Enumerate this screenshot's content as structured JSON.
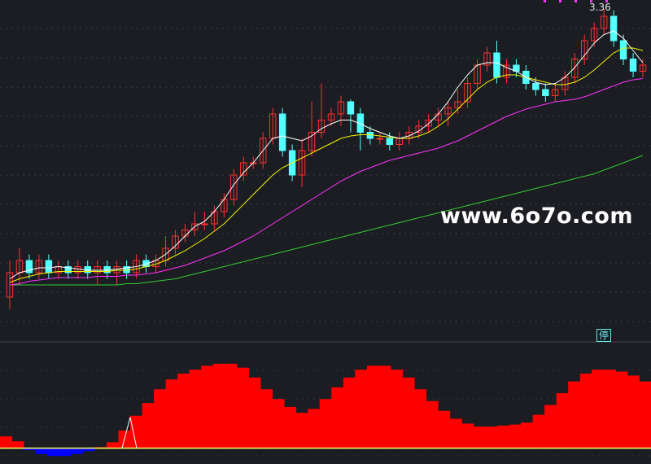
{
  "chart_data": {
    "type": "candlestick",
    "price_panel": {
      "high_annotation": "3.36",
      "candles": [
        [
          1.0,
          1.2,
          1.3,
          0.9
        ],
        [
          1.2,
          1.3,
          1.4,
          1.1
        ],
        [
          1.3,
          1.2,
          1.35,
          1.15
        ],
        [
          1.2,
          1.3,
          1.35,
          1.15
        ],
        [
          1.3,
          1.2,
          1.35,
          1.15
        ],
        [
          1.2,
          1.25,
          1.3,
          1.15
        ],
        [
          1.25,
          1.2,
          1.3,
          1.15
        ],
        [
          1.2,
          1.25,
          1.3,
          1.15
        ],
        [
          1.25,
          1.2,
          1.3,
          1.15
        ],
        [
          1.2,
          1.25,
          1.3,
          1.1
        ],
        [
          1.25,
          1.2,
          1.3,
          1.15
        ],
        [
          1.2,
          1.25,
          1.3,
          1.1
        ],
        [
          1.25,
          1.2,
          1.3,
          1.15
        ],
        [
          1.2,
          1.3,
          1.35,
          1.15
        ],
        [
          1.3,
          1.25,
          1.35,
          1.2
        ],
        [
          1.25,
          1.3,
          1.35,
          1.2
        ],
        [
          1.3,
          1.4,
          1.5,
          1.25
        ],
        [
          1.4,
          1.5,
          1.55,
          1.35
        ],
        [
          1.5,
          1.55,
          1.6,
          1.45
        ],
        [
          1.55,
          1.6,
          1.7,
          1.5
        ],
        [
          1.6,
          1.6,
          1.7,
          1.55
        ],
        [
          1.6,
          1.7,
          1.75,
          1.55
        ],
        [
          1.7,
          1.8,
          1.85,
          1.65
        ],
        [
          1.8,
          2.0,
          2.05,
          1.75
        ],
        [
          2.0,
          2.1,
          2.15,
          1.95
        ],
        [
          2.1,
          2.1,
          2.15,
          2.05
        ],
        [
          2.1,
          2.3,
          2.35,
          2.05
        ],
        [
          2.3,
          2.5,
          2.55,
          2.25
        ],
        [
          2.5,
          2.2,
          2.55,
          2.15
        ],
        [
          2.2,
          2.0,
          2.25,
          1.95
        ],
        [
          2.0,
          2.2,
          2.3,
          1.9
        ],
        [
          2.2,
          2.35,
          2.6,
          2.15
        ],
        [
          2.35,
          2.45,
          2.75,
          2.3
        ],
        [
          2.45,
          2.5,
          2.55,
          2.4
        ],
        [
          2.5,
          2.6,
          2.65,
          2.4
        ],
        [
          2.6,
          2.5,
          2.62,
          2.35
        ],
        [
          2.5,
          2.35,
          2.55,
          2.2
        ],
        [
          2.35,
          2.3,
          2.4,
          2.25
        ],
        [
          2.3,
          2.3,
          2.35,
          2.25
        ],
        [
          2.3,
          2.25,
          2.35,
          2.2
        ],
        [
          2.25,
          2.3,
          2.35,
          2.2
        ],
        [
          2.3,
          2.35,
          2.4,
          2.25
        ],
        [
          2.35,
          2.4,
          2.45,
          2.3
        ],
        [
          2.4,
          2.45,
          2.5,
          2.35
        ],
        [
          2.45,
          2.5,
          2.55,
          2.4
        ],
        [
          2.5,
          2.55,
          2.6,
          2.4
        ],
        [
          2.55,
          2.6,
          2.7,
          2.5
        ],
        [
          2.6,
          2.75,
          2.8,
          2.55
        ],
        [
          2.75,
          2.9,
          2.95,
          2.7
        ],
        [
          2.9,
          3.0,
          3.05,
          2.85
        ],
        [
          3.0,
          2.8,
          3.1,
          2.75
        ],
        [
          2.8,
          2.9,
          2.95,
          2.75
        ],
        [
          2.9,
          2.85,
          2.95,
          2.8
        ],
        [
          2.85,
          2.75,
          2.9,
          2.7
        ],
        [
          2.75,
          2.7,
          2.8,
          2.65
        ],
        [
          2.7,
          2.65,
          2.75,
          2.6
        ],
        [
          2.65,
          2.7,
          2.75,
          2.6
        ],
        [
          2.7,
          2.8,
          2.85,
          2.65
        ],
        [
          2.8,
          2.95,
          3.0,
          2.75
        ],
        [
          2.95,
          3.1,
          3.15,
          2.9
        ],
        [
          3.1,
          3.2,
          3.25,
          3.05
        ],
        [
          3.2,
          3.3,
          3.36,
          3.15
        ],
        [
          3.3,
          3.1,
          3.35,
          3.05
        ],
        [
          3.1,
          2.95,
          3.15,
          2.9
        ],
        [
          2.95,
          2.85,
          3.0,
          2.8
        ],
        [
          2.85,
          2.9,
          2.95,
          2.8
        ]
      ],
      "ma_short": [
        1.15,
        1.2,
        1.22,
        1.24,
        1.24,
        1.25,
        1.24,
        1.23,
        1.22,
        1.22,
        1.22,
        1.23,
        1.24,
        1.25,
        1.27,
        1.3,
        1.35,
        1.42,
        1.5,
        1.58,
        1.62,
        1.7,
        1.8,
        1.92,
        2.02,
        2.1,
        2.2,
        2.3,
        2.32,
        2.3,
        2.28,
        2.32,
        2.38,
        2.42,
        2.45,
        2.45,
        2.42,
        2.38,
        2.35,
        2.32,
        2.3,
        2.32,
        2.36,
        2.42,
        2.5,
        2.6,
        2.72,
        2.82,
        2.9,
        2.92,
        2.92,
        2.88,
        2.85,
        2.8,
        2.76,
        2.74,
        2.75,
        2.8,
        2.88,
        2.98,
        3.08,
        3.15,
        3.18,
        3.12,
        3.02,
        2.92
      ],
      "ma_mid": [
        1.12,
        1.15,
        1.17,
        1.19,
        1.2,
        1.21,
        1.21,
        1.21,
        1.21,
        1.21,
        1.21,
        1.22,
        1.22,
        1.23,
        1.25,
        1.27,
        1.3,
        1.34,
        1.38,
        1.43,
        1.48,
        1.54,
        1.6,
        1.68,
        1.76,
        1.84,
        1.92,
        2.0,
        2.06,
        2.1,
        2.14,
        2.18,
        2.22,
        2.26,
        2.3,
        2.32,
        2.33,
        2.33,
        2.32,
        2.31,
        2.3,
        2.3,
        2.32,
        2.35,
        2.4,
        2.46,
        2.54,
        2.62,
        2.7,
        2.76,
        2.8,
        2.82,
        2.82,
        2.8,
        2.78,
        2.76,
        2.74,
        2.74,
        2.76,
        2.8,
        2.86,
        2.93,
        3.0,
        3.04,
        3.04,
        3.02
      ],
      "ma_long": [
        1.1,
        1.11,
        1.13,
        1.14,
        1.15,
        1.16,
        1.16,
        1.16,
        1.16,
        1.17,
        1.17,
        1.17,
        1.18,
        1.18,
        1.19,
        1.2,
        1.22,
        1.24,
        1.26,
        1.29,
        1.32,
        1.35,
        1.38,
        1.42,
        1.46,
        1.5,
        1.55,
        1.6,
        1.65,
        1.7,
        1.75,
        1.8,
        1.85,
        1.9,
        1.95,
        1.99,
        2.03,
        2.06,
        2.09,
        2.12,
        2.14,
        2.16,
        2.18,
        2.2,
        2.22,
        2.25,
        2.28,
        2.32,
        2.36,
        2.4,
        2.44,
        2.48,
        2.51,
        2.54,
        2.56,
        2.58,
        2.6,
        2.61,
        2.62,
        2.64,
        2.67,
        2.7,
        2.73,
        2.76,
        2.78,
        2.79
      ],
      "ma_xlong": [
        1.1,
        1.1,
        1.1,
        1.1,
        1.1,
        1.1,
        1.1,
        1.1,
        1.1,
        1.1,
        1.1,
        1.1,
        1.11,
        1.11,
        1.12,
        1.13,
        1.14,
        1.15,
        1.17,
        1.19,
        1.21,
        1.23,
        1.25,
        1.27,
        1.29,
        1.31,
        1.33,
        1.35,
        1.37,
        1.39,
        1.41,
        1.43,
        1.45,
        1.47,
        1.49,
        1.51,
        1.53,
        1.55,
        1.57,
        1.59,
        1.61,
        1.63,
        1.65,
        1.67,
        1.69,
        1.71,
        1.73,
        1.75,
        1.77,
        1.79,
        1.81,
        1.83,
        1.85,
        1.87,
        1.89,
        1.91,
        1.93,
        1.95,
        1.97,
        1.99,
        2.01,
        2.04,
        2.07,
        2.1,
        2.13,
        2.16
      ],
      "ylim": [
        0.8,
        3.4
      ],
      "line_colors": {
        "ma_short": "#ffffff",
        "ma_mid": "#f2f200",
        "ma_long": "#ff33ff",
        "ma_xlong": "#33cc33"
      },
      "up_color": "#ff3030",
      "down_color": "#54ffff"
    },
    "indicator_panel": {
      "values": [
        0.12,
        0.07,
        -0.02,
        -0.06,
        -0.08,
        -0.08,
        -0.06,
        -0.03,
        0.01,
        0.06,
        0.18,
        0.33,
        0.46,
        0.6,
        0.7,
        0.76,
        0.8,
        0.84,
        0.86,
        0.86,
        0.82,
        0.72,
        0.6,
        0.5,
        0.42,
        0.36,
        0.4,
        0.5,
        0.62,
        0.72,
        0.8,
        0.84,
        0.84,
        0.8,
        0.72,
        0.6,
        0.48,
        0.38,
        0.3,
        0.25,
        0.22,
        0.22,
        0.23,
        0.24,
        0.26,
        0.34,
        0.44,
        0.56,
        0.68,
        0.76,
        0.8,
        0.8,
        0.78,
        0.74,
        0.68
      ],
      "ylim": [
        -0.12,
        1.0
      ],
      "positive_color": "#ff0000",
      "negative_color": "#0000ff",
      "baseline_color": "#ffff66",
      "spike_index": 11
    }
  },
  "labels": {
    "watermark": "www.6o7o.com",
    "halt_badge": "停"
  }
}
